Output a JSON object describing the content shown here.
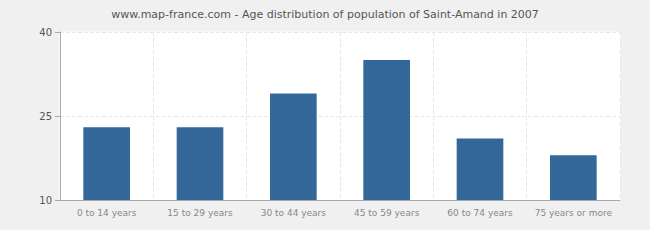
{
  "chart_data": {
    "type": "bar",
    "title": "www.map-france.com - Age distribution of population of Saint-Amand in 2007",
    "categories": [
      "0 to 14 years",
      "15 to 29 years",
      "30 to 44 years",
      "45 to 59 years",
      "60 to 74 years",
      "75 years or more"
    ],
    "values": [
      23,
      23,
      29,
      35,
      21,
      18
    ],
    "color": "#336699",
    "ylim": [
      10,
      40
    ],
    "yticks": [
      10,
      25,
      40
    ],
    "grid": true
  }
}
